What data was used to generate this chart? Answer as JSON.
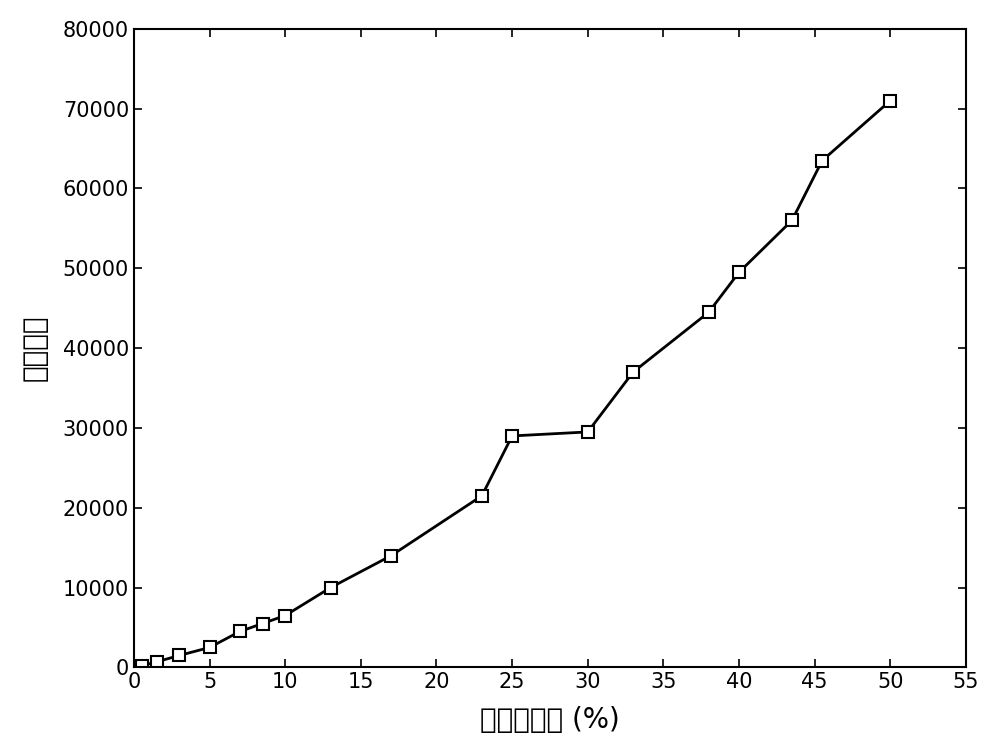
{
  "x": [
    0.5,
    1.5,
    3.0,
    5.0,
    7.0,
    8.5,
    10.0,
    13.0,
    17.0,
    23.0,
    25.0,
    30.0,
    33.0,
    38.0,
    40.0,
    43.5,
    45.5,
    50.0
  ],
  "y": [
    200,
    700,
    1500,
    2500,
    4500,
    5500,
    6500,
    10000,
    14000,
    21500,
    29000,
    29500,
    37000,
    44500,
    49500,
    56000,
    63500,
    71000
  ],
  "xlabel": "实际全水分 (%)",
  "ylabel": "首峰点値",
  "xlim": [
    0,
    55
  ],
  "ylim": [
    0,
    80000
  ],
  "xticks": [
    0,
    5,
    10,
    15,
    20,
    25,
    30,
    35,
    40,
    45,
    50,
    55
  ],
  "yticks": [
    0,
    10000,
    20000,
    30000,
    40000,
    50000,
    60000,
    70000,
    80000
  ],
  "line_color": "#000000",
  "marker": "s",
  "marker_facecolor": "#ffffff",
  "marker_edgecolor": "#000000",
  "marker_size": 8,
  "line_width": 2.0,
  "xlabel_fontsize": 20,
  "ylabel_fontsize": 20,
  "tick_fontsize": 15,
  "background_color": "#ffffff"
}
